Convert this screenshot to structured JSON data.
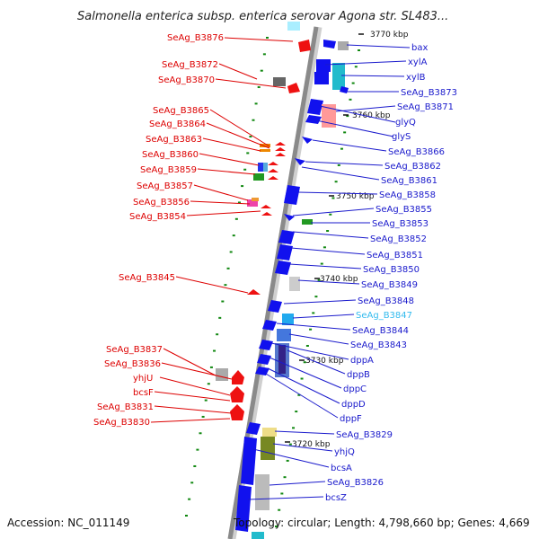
{
  "title": "Salmonella enterica subsp. enterica serovar Agona str. SL483...",
  "accession": "Accession: NC_011149",
  "topology": "Topology: circular; Length: 4,798,660 bp; Genes: 4,669",
  "scale_labels": [
    "3770 kbp",
    "3760 kbp",
    "3750 kbp",
    "3740 kbp",
    "3730 kbp",
    "3720 kbp"
  ],
  "colors": {
    "left_labels": "#dd0000",
    "right_labels": "#1a1acc",
    "highlight_label": "#33bbee",
    "backbone": "#888888",
    "forward_genes": "#ee1111",
    "reverse_genes": "#1111ee"
  },
  "left_labels": [
    "SeAg_B3876",
    "SeAg_B3872",
    "SeAg_B3870",
    "SeAg_B3865",
    "SeAg_B3864",
    "SeAg_B3863",
    "SeAg_B3860",
    "SeAg_B3859",
    "SeAg_B3857",
    "SeAg_B3856",
    "SeAg_B3854",
    "SeAg_B3845",
    "SeAg_B3837",
    "SeAg_B3836",
    "yhjU",
    "bcsF",
    "SeAg_B3831",
    "SeAg_B3830"
  ],
  "right_labels": [
    "bax",
    "xylA",
    "xylB",
    "SeAg_B3873",
    "SeAg_B3871",
    "glyQ",
    "glyS",
    "SeAg_B3866",
    "SeAg_B3862",
    "SeAg_B3861",
    "SeAg_B3858",
    "SeAg_B3855",
    "SeAg_B3853",
    "SeAg_B3852",
    "SeAg_B3851",
    "SeAg_B3850",
    "SeAg_B3849",
    "SeAg_B3848",
    "SeAg_B3847",
    "SeAg_B3844",
    "SeAg_B3843",
    "dppA",
    "dppB",
    "dppC",
    "dppD",
    "dppF",
    "SeAg_B3829",
    "yhjQ",
    "bcsA",
    "SeAg_B3826",
    "bcsZ"
  ],
  "highlighted_right_label": "SeAg_B3847"
}
